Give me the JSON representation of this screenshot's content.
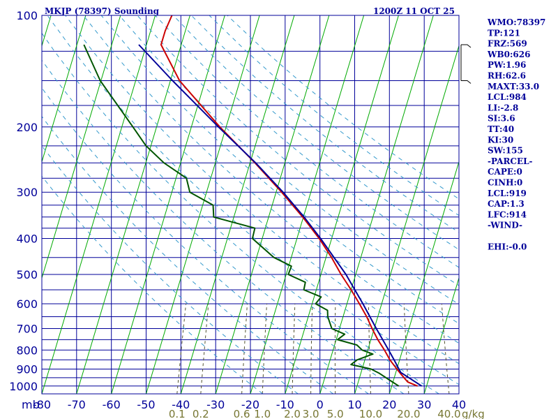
{
  "header": {
    "title": "MKJP (78397) Sounding",
    "time": "1200Z 11 OCT 25"
  },
  "indices": [
    "WMO:78397",
    "TP:121",
    "FRZ:569",
    "WB0:626",
    "PW:1.96",
    "RH:62.6",
    "MAXT:33.0",
    "LCL:984",
    "LI:-2.8",
    "SI:3.6",
    "TT:40",
    "KI:30",
    "SW:155",
    "-PARCEL-",
    "CAPE:0",
    "CINH:0",
    "LCL:919",
    "CAP:1.3",
    "LFC:914",
    "-WIND-",
    "",
    "EHI:-0.0"
  ],
  "chart_data": {
    "type": "line",
    "subtype": "skew-t log-p",
    "pressure_unit": "mb",
    "temperature_unit": "C",
    "mixing_ratio_unit": "g/kg",
    "pressure_ticks": [
      100,
      200,
      300,
      400,
      500,
      600,
      700,
      800,
      900,
      1000
    ],
    "temperature_ticks": [
      -80,
      -70,
      -60,
      -50,
      -40,
      -30,
      -20,
      -10,
      0,
      10,
      20,
      30,
      40
    ],
    "temperature_tick_labels": [
      "-80",
      "-70",
      "-60",
      "-50",
      "-40",
      "-30",
      "-20",
      "-10",
      "0",
      "10",
      "20",
      "30",
      "40"
    ],
    "mixing_ratio_labels": [
      "0.1",
      "0.2",
      "0.6",
      "1.0",
      "2.0",
      "3.0",
      "5.0",
      "10.0",
      "20.0",
      "40.0"
    ],
    "mixing_ratio_values": [
      0.1,
      0.2,
      0.6,
      1.0,
      2.0,
      3.0,
      5.0,
      10.0,
      20.0,
      40.0
    ],
    "pressure_range": [
      100,
      1050
    ],
    "temperature_range_bottom": [
      -80,
      40
    ],
    "grid": true,
    "series": [
      {
        "key": "temperature",
        "color": "#cc0000",
        "points": [
          {
            "p": 1000,
            "t": 27.4
          },
          {
            "p": 975,
            "t": 24.2
          },
          {
            "p": 925,
            "t": 21.4
          },
          {
            "p": 900,
            "t": 20.0
          },
          {
            "p": 850,
            "t": 17.2
          },
          {
            "p": 800,
            "t": 14.8
          },
          {
            "p": 750,
            "t": 12.0
          },
          {
            "p": 700,
            "t": 9.4
          },
          {
            "p": 650,
            "t": 6.8
          },
          {
            "p": 600,
            "t": 3.6
          },
          {
            "p": 550,
            "t": 0.0
          },
          {
            "p": 500,
            "t": -4.2
          },
          {
            "p": 450,
            "t": -8.4
          },
          {
            "p": 400,
            "t": -13.6
          },
          {
            "p": 350,
            "t": -20.2
          },
          {
            "p": 300,
            "t": -28.4
          },
          {
            "p": 250,
            "t": -38.6
          },
          {
            "p": 200,
            "t": -51.8
          },
          {
            "p": 150,
            "t": -67.4
          },
          {
            "p": 120,
            "t": -75.8
          },
          {
            "p": 110,
            "t": -75.8
          },
          {
            "p": 100,
            "t": -75.2
          }
        ]
      },
      {
        "key": "dewpoint",
        "color": "#005500",
        "points": [
          {
            "p": 1000,
            "t": 22.0
          },
          {
            "p": 975,
            "t": 19.8
          },
          {
            "p": 925,
            "t": 15.4
          },
          {
            "p": 900,
            "t": 12.6
          },
          {
            "p": 875,
            "t": 6.4
          },
          {
            "p": 850,
            "t": 7.8
          },
          {
            "p": 820,
            "t": 11.8
          },
          {
            "p": 800,
            "t": 8.4
          },
          {
            "p": 775,
            "t": 6.4
          },
          {
            "p": 750,
            "t": 0.4
          },
          {
            "p": 725,
            "t": 2.0
          },
          {
            "p": 700,
            "t": -2.2
          },
          {
            "p": 650,
            "t": -4.4
          },
          {
            "p": 625,
            "t": -5.0
          },
          {
            "p": 600,
            "t": -9.0
          },
          {
            "p": 575,
            "t": -8.0
          },
          {
            "p": 550,
            "t": -13.6
          },
          {
            "p": 525,
            "t": -13.8
          },
          {
            "p": 500,
            "t": -19.4
          },
          {
            "p": 475,
            "t": -19.2
          },
          {
            "p": 450,
            "t": -25.0
          },
          {
            "p": 400,
            "t": -32.8
          },
          {
            "p": 375,
            "t": -33.0
          },
          {
            "p": 350,
            "t": -45.8
          },
          {
            "p": 325,
            "t": -47.0
          },
          {
            "p": 300,
            "t": -54.8
          },
          {
            "p": 275,
            "t": -57.0
          },
          {
            "p": 250,
            "t": -64.8
          },
          {
            "p": 225,
            "t": -71.4
          },
          {
            "p": 200,
            "t": -76.8
          },
          {
            "p": 150,
            "t": -90.2
          },
          {
            "p": 120,
            "t": -98.0
          }
        ]
      },
      {
        "key": "parcel",
        "color": "#000099",
        "points": [
          {
            "p": 1000,
            "t": 28.6
          },
          {
            "p": 919,
            "t": 21.4
          },
          {
            "p": 850,
            "t": 18.4
          },
          {
            "p": 800,
            "t": 16.0
          },
          {
            "p": 700,
            "t": 10.6
          },
          {
            "p": 600,
            "t": 4.6
          },
          {
            "p": 500,
            "t": -2.8
          },
          {
            "p": 400,
            "t": -13.2
          },
          {
            "p": 350,
            "t": -19.8
          },
          {
            "p": 300,
            "t": -28.0
          },
          {
            "p": 250,
            "t": -38.4
          },
          {
            "p": 200,
            "t": -52.2
          },
          {
            "p": 150,
            "t": -69.4
          },
          {
            "p": 120,
            "t": -82.2
          }
        ]
      }
    ],
    "wind": {
      "barbs": [
        {
          "p": 120
        },
        {
          "p": 150
        }
      ]
    }
  }
}
